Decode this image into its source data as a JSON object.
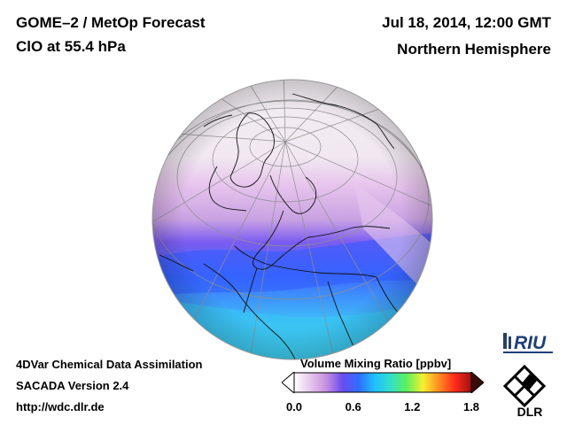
{
  "header": {
    "title": "GOME–2 / MetOp Forecast",
    "subtitle": "ClO at 55.4 hPa",
    "date": "Jul 18, 2014, 12:00 GMT",
    "hemisphere": "Northern Hemisphere"
  },
  "footer": {
    "line1": "4DVar Chemical Data Assimilation",
    "line2": "SACADA Version 2.4",
    "line3": "http://wdc.dlr.de"
  },
  "colorbar": {
    "title": "Volume Mixing Ratio [ppbv]",
    "ticks": [
      "0.0",
      "0.6",
      "1.2",
      "1.8"
    ],
    "range": [
      0.0,
      1.8
    ],
    "colors": [
      "#ffffff",
      "#e6c6ec",
      "#c58fe0",
      "#6a4cf0",
      "#2f6dff",
      "#1fc0ff",
      "#34e0c8",
      "#5ff05a",
      "#f6f030",
      "#ff8a20",
      "#ff2a1a",
      "#a01010"
    ]
  },
  "map": {
    "projection": "orthographic",
    "view": "north-polar",
    "ocean_color": "#e9e6ea",
    "field_colors": {
      "polar": "#f3eef2",
      "midlat": "#e7c4ec",
      "band": "#c9a2e3",
      "tropics_purple": "#7a5cf0",
      "tropics_blue": "#3d6cff",
      "tropics_cyan": "#49d7e8"
    }
  },
  "logos": {
    "riu_text": "RIU",
    "dlr_text": "DLR"
  }
}
